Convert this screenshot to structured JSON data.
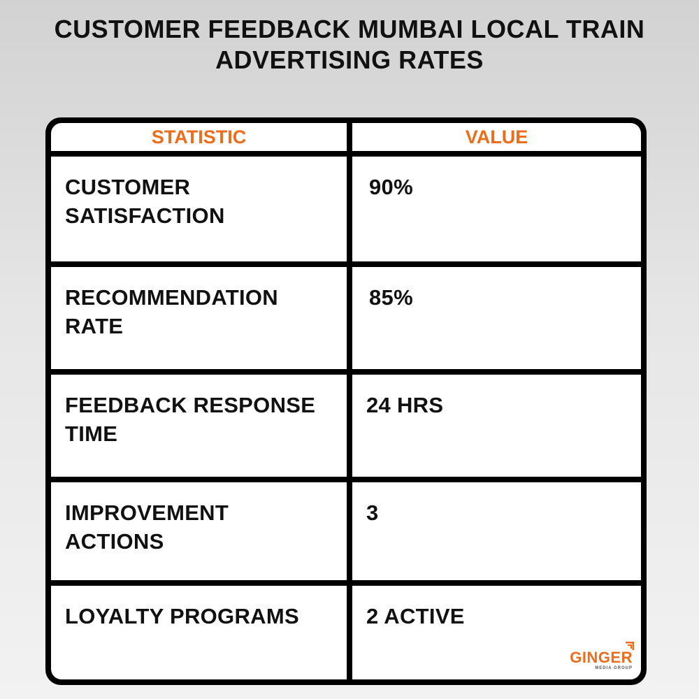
{
  "title": {
    "line1": "CUSTOMER FEEDBACK MUMBAI LOCAL TRAIN",
    "line2": "ADVERTISING RATES"
  },
  "table": {
    "headers": [
      "STATISTIC",
      "VALUE"
    ],
    "rows": [
      {
        "stat_line1": "CUSTOMER",
        "stat_line2": "SATISFACTION",
        "value": "90%"
      },
      {
        "stat_line1": "RECOMMENDATION",
        "stat_line2": "RATE",
        "value": "85%"
      },
      {
        "stat_line1": "FEEDBACK RESPONSE",
        "stat_line2": "TIME",
        "value": "24 HRS"
      },
      {
        "stat_line1": "IMPROVEMENT",
        "stat_line2": "ACTIONS",
        "value": "3"
      },
      {
        "stat_line1": "LOYALTY PROGRAMS",
        "stat_line2": "",
        "value": "2 ACTIVE"
      }
    ]
  },
  "logo": {
    "word": "GINGER",
    "sub": "MEDIA GROUP"
  },
  "colors": {
    "accent": "#ef6c1a",
    "text": "#111111",
    "border": "#000000"
  }
}
